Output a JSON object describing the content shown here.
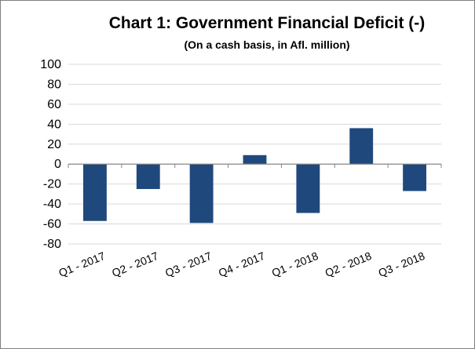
{
  "chart_data": {
    "type": "bar",
    "title": "Chart 1: Government Financial Deficit (-)",
    "subtitle": "(On a cash basis, in Afl. million)",
    "xlabel": "",
    "ylabel": "",
    "categories": [
      "Q1 - 2017",
      "Q2 - 2017",
      "Q3 - 2017",
      "Q4 - 2017",
      "Q1 - 2018",
      "Q2 - 2018",
      "Q3 - 2018"
    ],
    "values": [
      -57,
      -25,
      -59,
      9,
      -49,
      36,
      -27
    ],
    "ylim": [
      -80,
      100
    ],
    "yticks": [
      100,
      80,
      60,
      40,
      20,
      0,
      -20,
      -40,
      -60,
      -80
    ],
    "grid": true,
    "legend": "none",
    "colors": {
      "bar": "#1f497d",
      "grid": "#d9d9d9",
      "axis": "#868686"
    }
  }
}
